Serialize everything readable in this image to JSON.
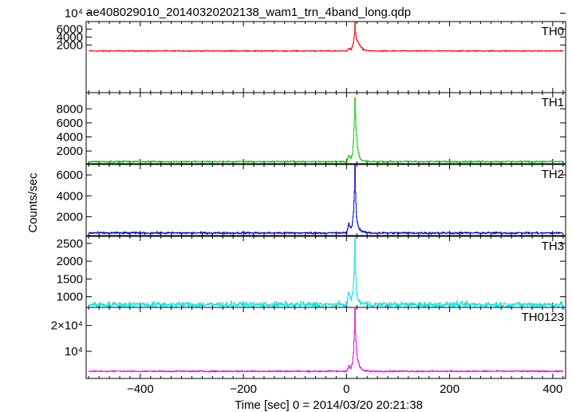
{
  "chart_data": {
    "type": "line",
    "title": "ae408029010_20140320202138_wam1_trn_4band_long.qdp",
    "xlabel": "Time [sec] 0 = 2014/03/20 20:21:38",
    "ylabel": "Counts/sec",
    "xlim": [
      -505,
      425
    ],
    "xticks": [
      -400,
      -200,
      0,
      200,
      400
    ],
    "xtick_labels": [
      "−400",
      "−200",
      "0",
      "200",
      "400"
    ],
    "grid": false,
    "panels": [
      {
        "name": "TH0",
        "color": "#ff0000",
        "ylim": [
          -10000,
          7900
        ],
        "yticks": [
          10000,
          2000,
          4000,
          6000
        ],
        "ytick_labels": [
          "10⁴",
          "2000",
          "4000",
          "6000"
        ],
        "baseline": 500,
        "noise": 60,
        "profile": [
          [
            0,
            600
          ],
          [
            4,
            1200
          ],
          [
            8,
            800
          ],
          [
            11,
            1700
          ],
          [
            13,
            2600
          ],
          [
            15,
            4600
          ],
          [
            16,
            7900
          ],
          [
            17,
            5200
          ],
          [
            19,
            3400
          ],
          [
            21,
            3100
          ],
          [
            24,
            2200
          ],
          [
            27,
            1600
          ],
          [
            30,
            1100
          ],
          [
            35,
            700
          ],
          [
            45,
            550
          ]
        ]
      },
      {
        "name": "TH1",
        "color": "#00cc00",
        "ylim": [
          200,
          10300
        ],
        "yticks": [
          2000,
          4000,
          6000,
          8000
        ],
        "ytick_labels": [
          "2000",
          "4000",
          "6000",
          "8000"
        ],
        "baseline": 500,
        "noise": 50,
        "profile": [
          [
            0,
            600
          ],
          [
            4,
            1400
          ],
          [
            8,
            900
          ],
          [
            11,
            1600
          ],
          [
            13,
            3500
          ],
          [
            15,
            6500
          ],
          [
            16,
            9600
          ],
          [
            17,
            7000
          ],
          [
            19,
            4200
          ],
          [
            21,
            2500
          ],
          [
            24,
            1300
          ],
          [
            27,
            800
          ],
          [
            30,
            650
          ],
          [
            35,
            550
          ],
          [
            45,
            520
          ]
        ]
      },
      {
        "name": "TH2",
        "color": "#0000cc",
        "ylim": [
          200,
          7000
        ],
        "yticks": [
          2000,
          4000,
          6000
        ],
        "ytick_labels": [
          "2000",
          "4000",
          "6000"
        ],
        "baseline": 450,
        "noise": 45,
        "profile": [
          [
            0,
            550
          ],
          [
            4,
            1300
          ],
          [
            8,
            900
          ],
          [
            11,
            1300
          ],
          [
            13,
            2600
          ],
          [
            15,
            4500
          ],
          [
            16,
            7000
          ],
          [
            17,
            4300
          ],
          [
            19,
            2100
          ],
          [
            21,
            1300
          ],
          [
            24,
            900
          ],
          [
            27,
            700
          ],
          [
            30,
            600
          ],
          [
            35,
            500
          ],
          [
            45,
            470
          ]
        ]
      },
      {
        "name": "TH3",
        "color": "#00e5e5",
        "ylim": [
          700,
          2700
        ],
        "yticks": [
          1000,
          1500,
          2000,
          2500
        ],
        "ytick_labels": [
          "1000",
          "1500",
          "2000",
          "2500"
        ],
        "baseline": 780,
        "noise": 38,
        "profile": [
          [
            0,
            800
          ],
          [
            4,
            1100
          ],
          [
            8,
            950
          ],
          [
            11,
            1000
          ],
          [
            13,
            1300
          ],
          [
            15,
            2100
          ],
          [
            16,
            2700
          ],
          [
            17,
            1700
          ],
          [
            19,
            1100
          ],
          [
            21,
            950
          ],
          [
            24,
            880
          ],
          [
            27,
            840
          ],
          [
            30,
            820
          ],
          [
            35,
            800
          ],
          [
            45,
            790
          ]
        ]
      },
      {
        "name": "TH0123",
        "color": "#e000e0",
        "ylim": [
          -500,
          27000
        ],
        "yticks": [
          10000,
          20000
        ],
        "ytick_labels": [
          "10⁴",
          "2×10⁴"
        ],
        "baseline": 2300,
        "noise": 130,
        "profile": [
          [
            0,
            2500
          ],
          [
            4,
            4600
          ],
          [
            8,
            3600
          ],
          [
            11,
            5500
          ],
          [
            13,
            9500
          ],
          [
            15,
            18000
          ],
          [
            16,
            27000
          ],
          [
            17,
            17000
          ],
          [
            19,
            10500
          ],
          [
            21,
            7000
          ],
          [
            24,
            4700
          ],
          [
            27,
            3500
          ],
          [
            30,
            2900
          ],
          [
            35,
            2500
          ],
          [
            45,
            2350
          ]
        ]
      }
    ]
  }
}
